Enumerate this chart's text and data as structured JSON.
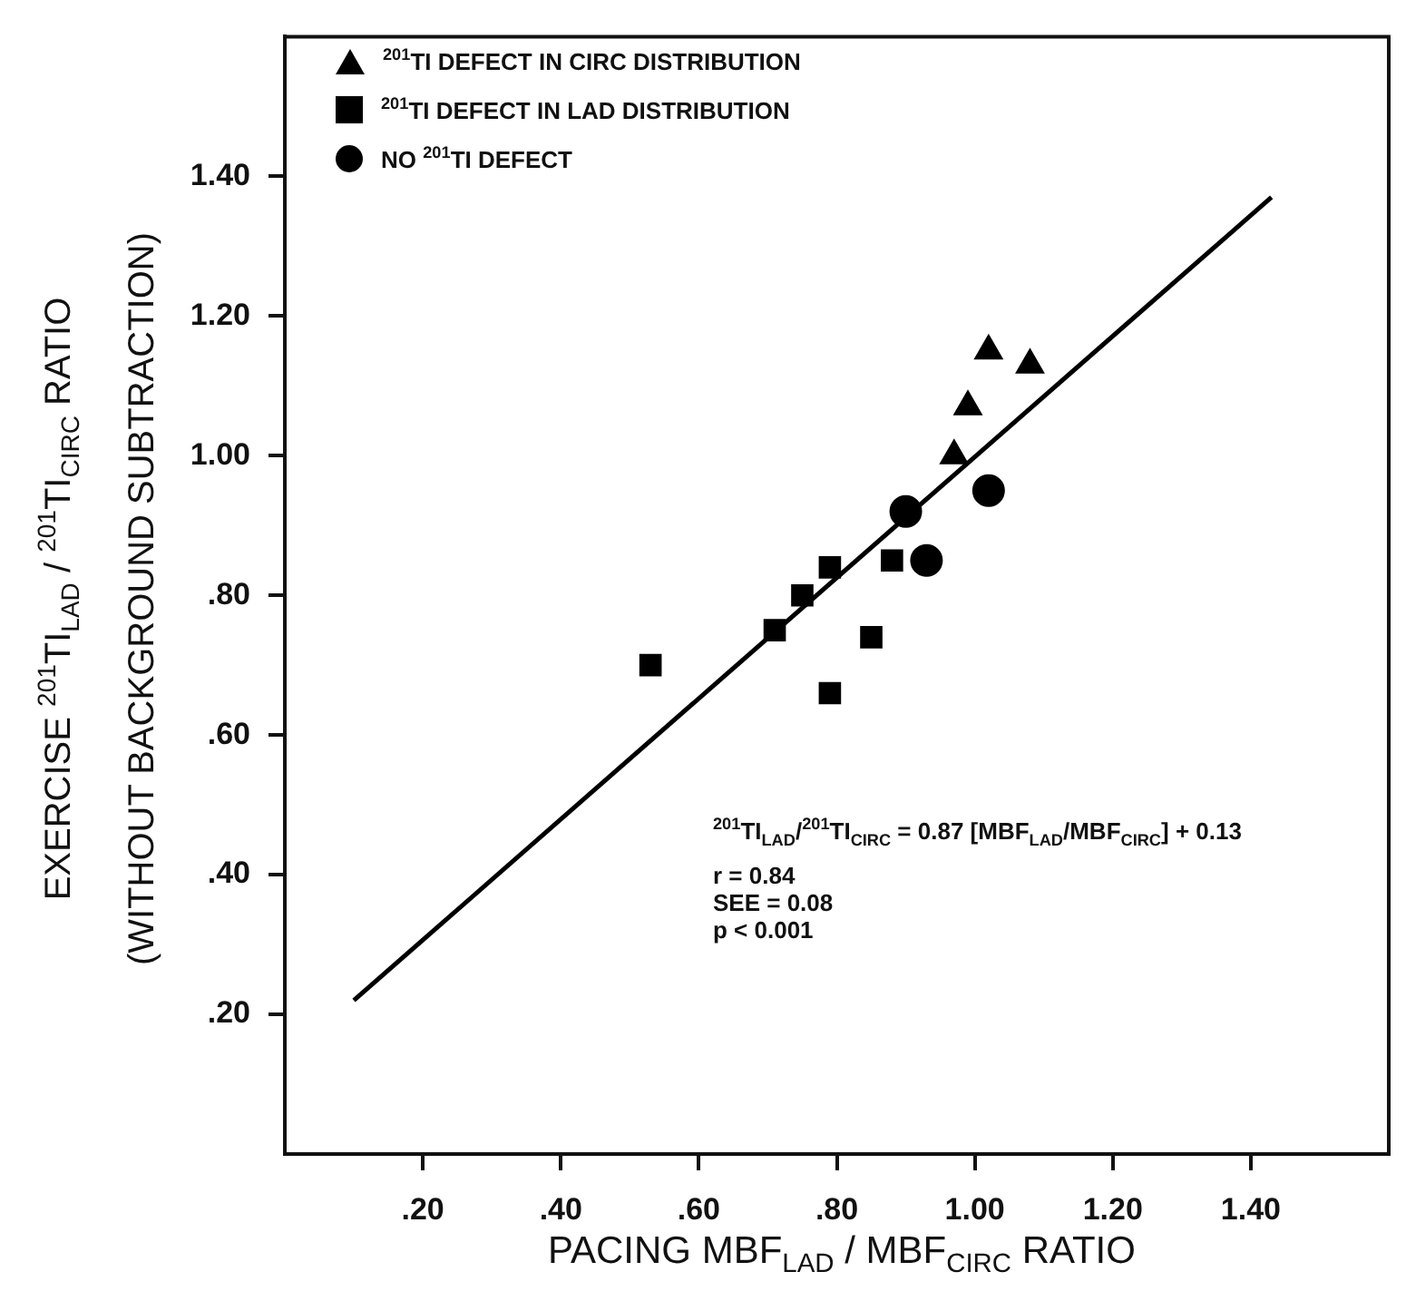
{
  "chart_data": {
    "type": "scatter",
    "xlabel": "PACING MBF$_{LAD}$ / MBF$_{CIRC}$ RATIO",
    "ylabel": "EXERCISE $^{201}$TI$_{LAD}$ / $^{201}$TI$_{CIRC}$ RATIO\n(WITHOUT BACKGROUND SUBTRACTION)",
    "xlim": [
      0,
      1.6
    ],
    "ylim": [
      0,
      1.6
    ],
    "xticks": [
      {
        "value": 0.2,
        "label": ".20"
      },
      {
        "value": 0.4,
        "label": ".40"
      },
      {
        "value": 0.6,
        "label": ".60"
      },
      {
        "value": 0.8,
        "label": ".80"
      },
      {
        "value": 1.0,
        "label": "1.00"
      },
      {
        "value": 1.2,
        "label": "1.20"
      },
      {
        "value": 1.4,
        "label": "1.40"
      }
    ],
    "yticks": [
      {
        "value": 0.2,
        "label": ".20"
      },
      {
        "value": 0.4,
        "label": ".40"
      },
      {
        "value": 0.6,
        "label": ".60"
      },
      {
        "value": 0.8,
        "label": ".80"
      },
      {
        "value": 1.0,
        "label": "1.00"
      },
      {
        "value": 1.2,
        "label": "1.20"
      },
      {
        "value": 1.4,
        "label": "1.40"
      }
    ],
    "grid": false,
    "legend": "top left",
    "series": [
      {
        "name": "$^{201}$TI DEFECT IN CIRC DISTRIBUTION",
        "color": "#000000",
        "marker": "triangle",
        "x": [
          1.02,
          1.08,
          0.99,
          0.97
        ],
        "values": [
          1.15,
          1.13,
          1.07,
          1.0
        ]
      },
      {
        "name": "$^{201}$TI DEFECT IN LAD DISTRIBUTION",
        "color": "#000000",
        "marker": "square",
        "x": [
          0.53,
          0.71,
          0.75,
          0.79,
          0.88,
          0.85,
          0.79
        ],
        "values": [
          0.7,
          0.75,
          0.8,
          0.84,
          0.85,
          0.74,
          0.66
        ]
      },
      {
        "name": "NO $^{201}$TI DEFECT",
        "color": "#000000",
        "marker": "circle",
        "x": [
          1.02,
          0.9,
          0.93
        ],
        "values": [
          0.95,
          0.92,
          0.85
        ]
      },
      {
        "type": "line",
        "color": "#000000",
        "marker": "none",
        "line_style": "solid",
        "x": [
          0.1,
          1.43
        ],
        "values": [
          0.22,
          1.37
        ]
      }
    ],
    "annotations": [
      "$^{201}$TI$_{LAD}$/$^{201}$TI$_{CIRC}$ = 0.87 [MBF$_{LAD}$/MBF$_{CIRC}$] + 0.13",
      "r = 0.84",
      "SEE = 0.08",
      "p < 0.001"
    ]
  }
}
